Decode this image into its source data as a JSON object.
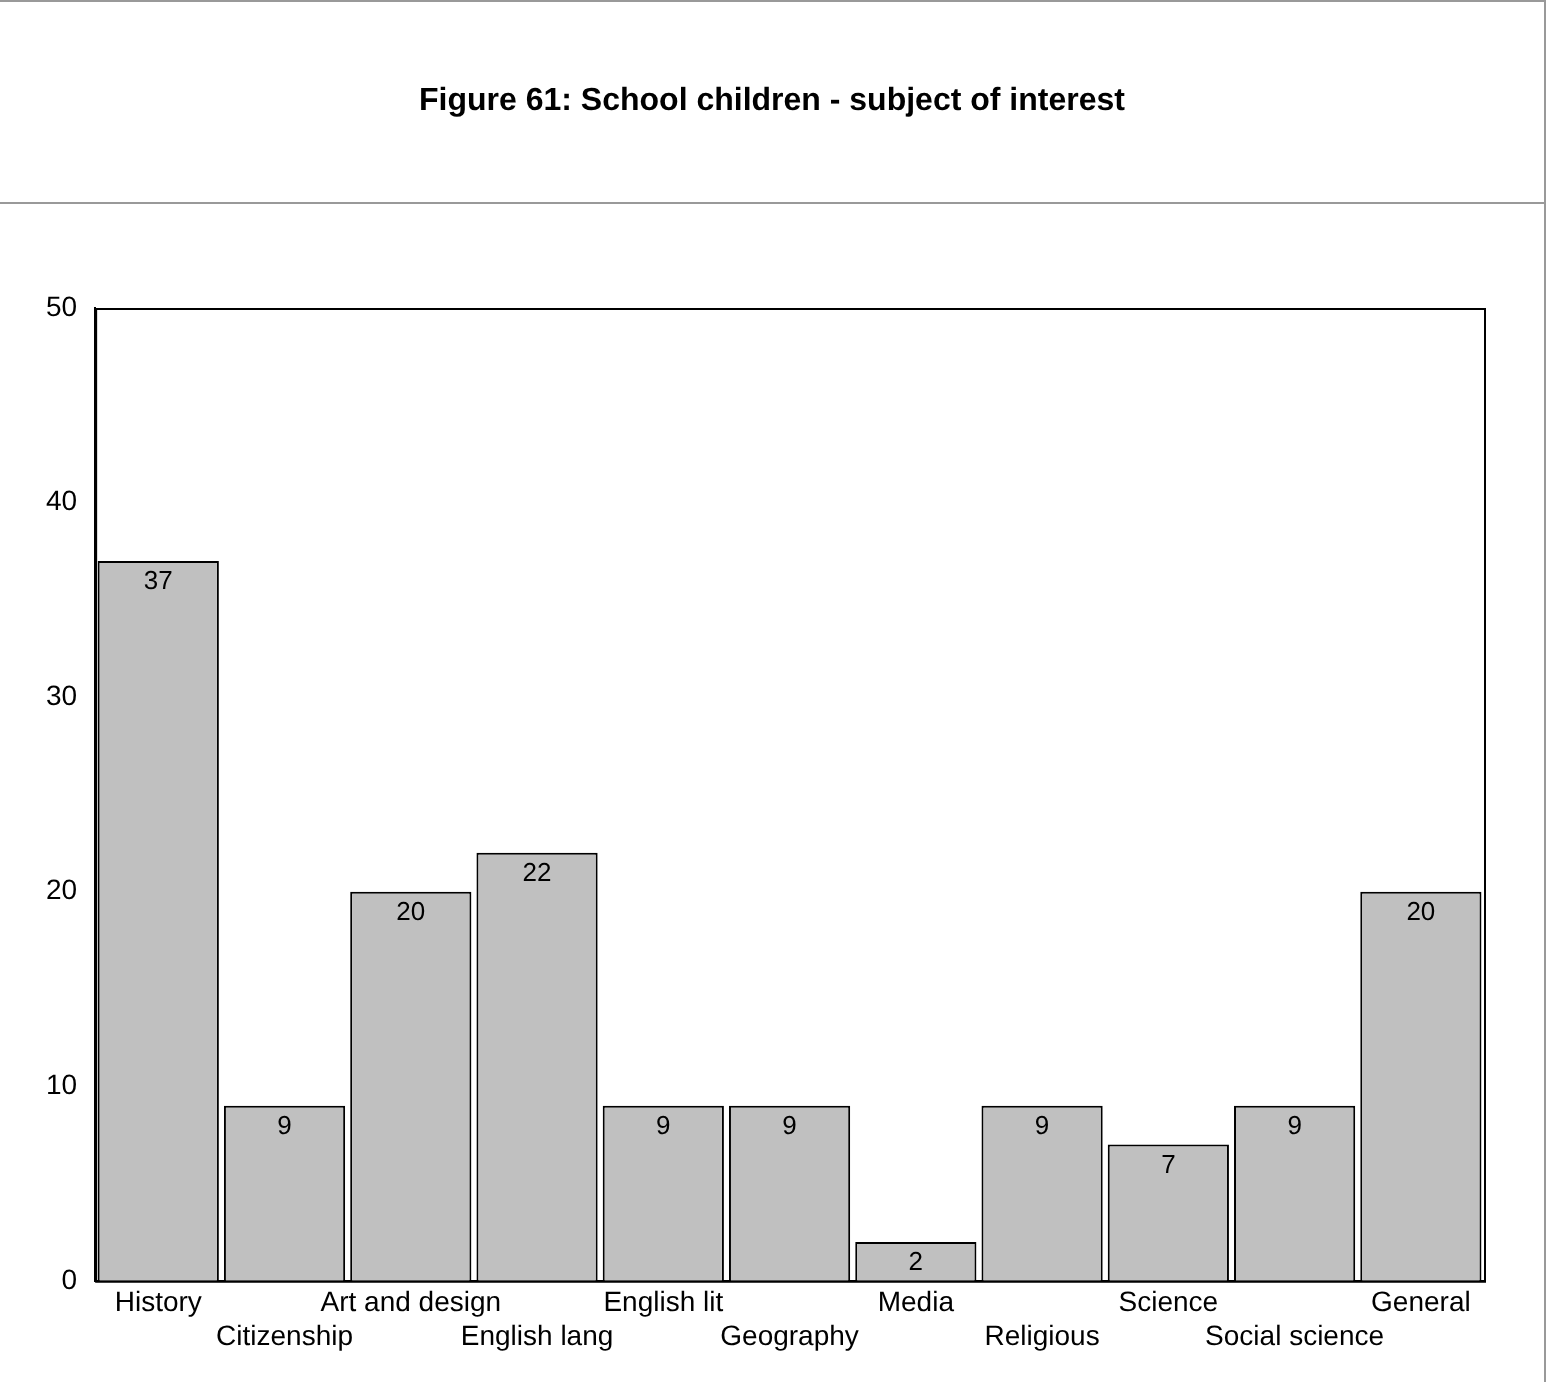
{
  "chart_data": {
    "type": "bar",
    "title": "Figure 61: School children - subject of interest",
    "categories": [
      "History",
      "Citizenship",
      "Art and design",
      "English lang",
      "English lit",
      "Geography",
      "Media",
      "Religious",
      "Science",
      "Social science",
      "General"
    ],
    "values": [
      37,
      9,
      20,
      22,
      9,
      9,
      2,
      9,
      7,
      9,
      20
    ],
    "color": "#c0c0c0",
    "ylim": [
      0,
      50
    ],
    "yticks": [
      0,
      10,
      20,
      30,
      40,
      50
    ],
    "grid": false,
    "legend": false,
    "data_labels": true
  }
}
